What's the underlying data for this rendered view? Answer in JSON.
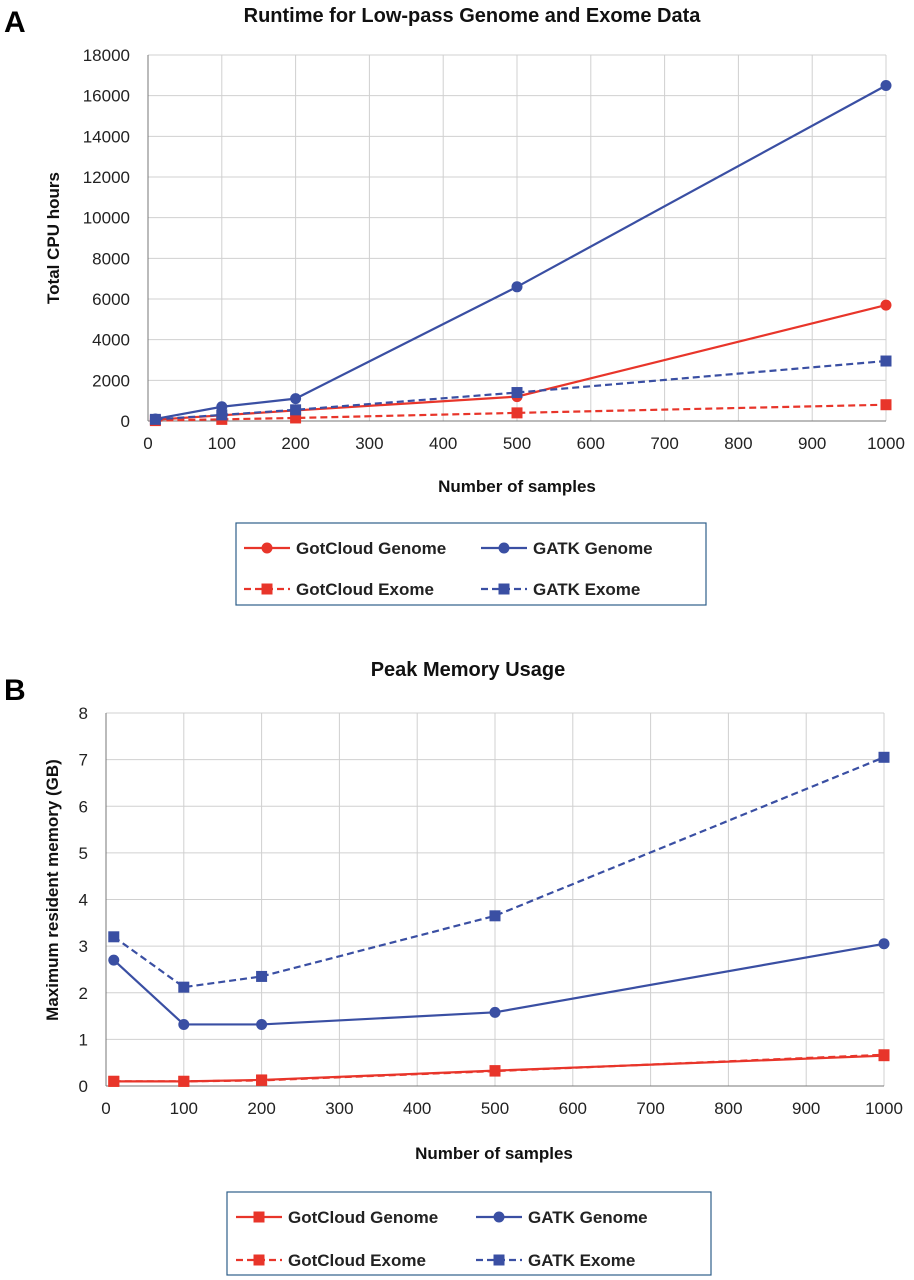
{
  "panels": [
    "A",
    "B"
  ],
  "colors": {
    "gotcloud": "#e8352a",
    "gatk": "#3a4fa3"
  },
  "chart_data": [
    {
      "type": "line",
      "title": "Runtime for Low-pass Genome and Exome Data",
      "xlabel": "Number of samples",
      "ylabel": "Total CPU hours",
      "xlim": [
        0,
        1000
      ],
      "ylim": [
        0,
        18000
      ],
      "xticks": [
        0,
        100,
        200,
        300,
        400,
        500,
        600,
        700,
        800,
        900,
        1000
      ],
      "yticks": [
        0,
        2000,
        4000,
        6000,
        8000,
        10000,
        12000,
        14000,
        16000,
        18000
      ],
      "grid": true,
      "legend_position": "below",
      "series": [
        {
          "name": "GotCloud Genome",
          "color": "#e8352a",
          "dash": false,
          "marker": "circle",
          "x": [
            10,
            100,
            200,
            500,
            1000
          ],
          "y": [
            60,
            280,
            520,
            1200,
            5700
          ]
        },
        {
          "name": "GATK Genome",
          "color": "#3a4fa3",
          "dash": false,
          "marker": "circle",
          "x": [
            10,
            100,
            200,
            500,
            1000
          ],
          "y": [
            100,
            700,
            1100,
            6600,
            16500
          ]
        },
        {
          "name": "GotCloud Exome",
          "color": "#e8352a",
          "dash": true,
          "marker": "square",
          "x": [
            10,
            100,
            200,
            500,
            1000
          ],
          "y": [
            20,
            80,
            150,
            400,
            800
          ]
        },
        {
          "name": "GATK Exome",
          "color": "#3a4fa3",
          "dash": true,
          "marker": "square",
          "x": [
            10,
            100,
            200,
            500,
            1000
          ],
          "y": [
            80,
            300,
            550,
            1400,
            2950
          ]
        }
      ]
    },
    {
      "type": "line",
      "title": "Peak Memory Usage",
      "xlabel": "Number of samples",
      "ylabel": "Maximum resident memory (GB)",
      "xlim": [
        0,
        1000
      ],
      "ylim": [
        0,
        8
      ],
      "xticks": [
        0,
        100,
        200,
        300,
        400,
        500,
        600,
        700,
        800,
        900,
        1000
      ],
      "yticks": [
        0,
        1,
        2,
        3,
        4,
        5,
        6,
        7,
        8
      ],
      "grid": true,
      "legend_position": "below",
      "series": [
        {
          "name": "GotCloud Genome",
          "color": "#e8352a",
          "dash": false,
          "marker": "square",
          "x": [
            10,
            100,
            200,
            500,
            1000
          ],
          "y": [
            0.1,
            0.1,
            0.13,
            0.33,
            0.65
          ]
        },
        {
          "name": "GATK Genome",
          "color": "#3a4fa3",
          "dash": false,
          "marker": "circle",
          "x": [
            10,
            100,
            200,
            500,
            1000
          ],
          "y": [
            2.7,
            1.32,
            1.32,
            1.58,
            3.05
          ]
        },
        {
          "name": "GotCloud Exome",
          "color": "#e8352a",
          "dash": true,
          "marker": "square",
          "x": [
            10,
            100,
            200,
            500,
            1000
          ],
          "y": [
            0.1,
            0.1,
            0.12,
            0.32,
            0.67
          ]
        },
        {
          "name": "GATK Exome",
          "color": "#3a4fa3",
          "dash": true,
          "marker": "square",
          "x": [
            10,
            100,
            200,
            500,
            1000
          ],
          "y": [
            3.2,
            2.12,
            2.35,
            3.65,
            7.05
          ]
        }
      ]
    }
  ]
}
